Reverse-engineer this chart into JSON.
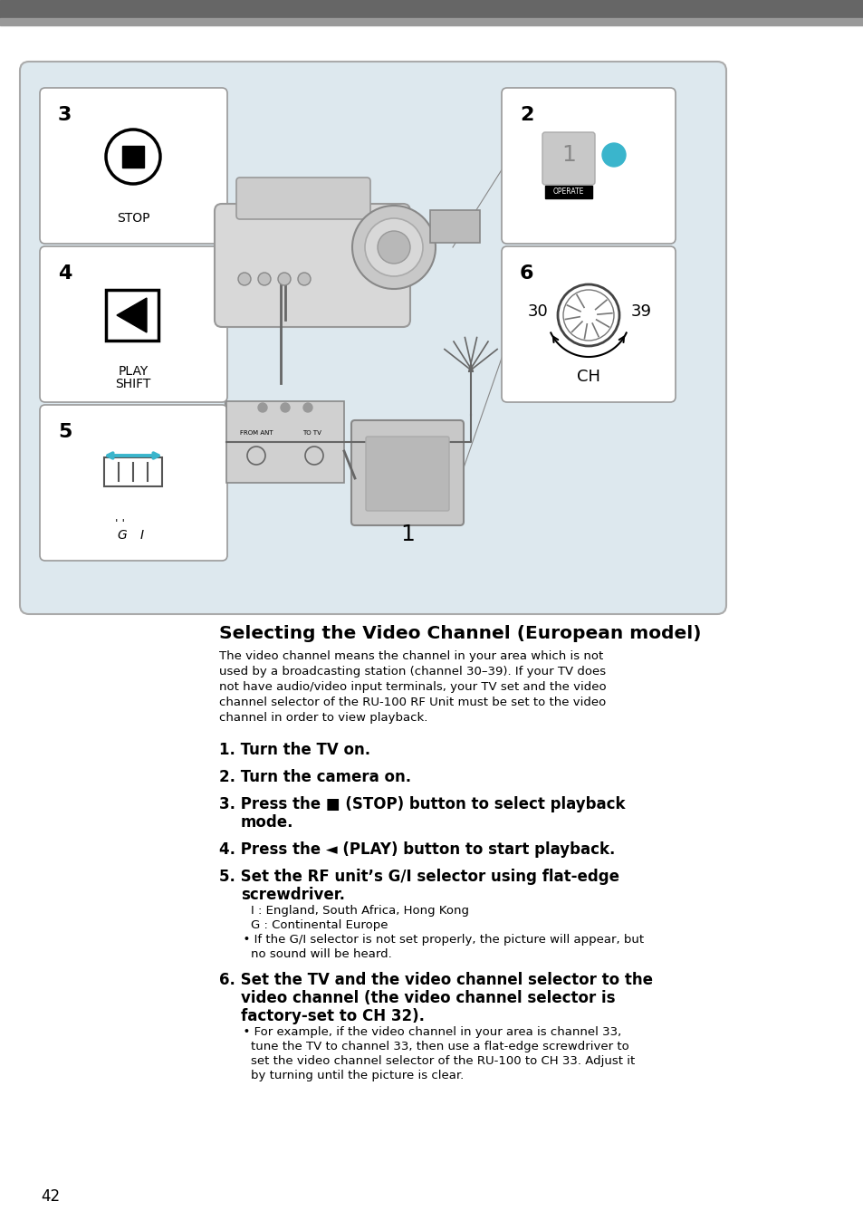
{
  "bg_color": "#f5f5f5",
  "page_bg": "#ffffff",
  "diagram_bg": "#dde8ee",
  "border_color": "#888888",
  "title": "Selecting the Video Channel (European model)",
  "intro_text": "The video channel means the channel in your area which is not\nused by a broadcasting station (channel 30–39). If your TV does\nnot have audio/video input terminals, your TV set and the video\nchannel selector of the RU-100 RF Unit must be set to the video\nchannel in order to view playback.",
  "steps": [
    {
      "num": "1.",
      "bold": "Turn the TV on.",
      "normal": ""
    },
    {
      "num": "2.",
      "bold": "Turn the camera on.",
      "normal": ""
    },
    {
      "num": "3.",
      "bold": "Press the ■ (STOP) button to select playback\nmode.",
      "normal": ""
    },
    {
      "num": "4.",
      "bold": "Press the ◄ (PLAY) button to start playback.",
      "normal": ""
    },
    {
      "num": "5.",
      "bold": "Set the RF unit’s G/I selector using flat-edge\nscrewdriver.",
      "normal": "    I : England, South Africa, Hong Kong\n    G : Continental Europe\n  • If the G/I selector is not set properly, the picture will appear, but\n    no sound will be heard."
    },
    {
      "num": "6.",
      "bold": "Set the TV and the video channel selector to the\nvideo channel (the video channel selector is\nfactory-set to CH 32).",
      "normal": "  • For example, if the video channel in your area is channel 33,\n    tune the TV to channel 33, then use a flat-edge screwdriver to\n    set the video channel selector of the RU-100 to CH 33. Adjust it\n    by turning until the picture is clear."
    }
  ],
  "page_number": "42",
  "top_bar_color": "#666666",
  "top_bar2_color": "#999999",
  "accent_color": "#3ab5cc"
}
